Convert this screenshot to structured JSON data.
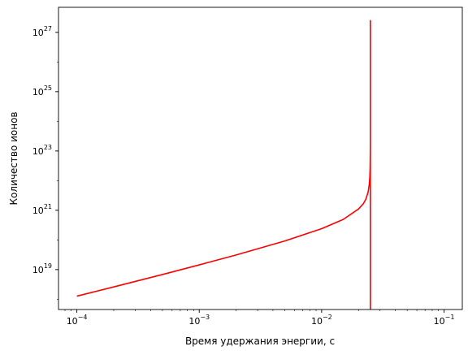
{
  "chart_data": {
    "type": "line",
    "xscale": "log",
    "yscale": "log",
    "xlim": [
      7.08e-05,
      0.141
    ],
    "ylim": [
      4.5e+17,
      7e+27
    ],
    "xlabel": "Время удержания энергии, с",
    "ylabel": "Количество ионов",
    "grid": false,
    "x_ticks": [
      {
        "value": 0.0001,
        "base": "10",
        "exp": "−4"
      },
      {
        "value": 0.001,
        "base": "10",
        "exp": "−3"
      },
      {
        "value": 0.01,
        "base": "10",
        "exp": "−2"
      },
      {
        "value": 0.1,
        "base": "10",
        "exp": "−1"
      }
    ],
    "y_ticks": [
      {
        "value": 1e+19,
        "base": "10",
        "exp": "19"
      },
      {
        "value": 1e+21,
        "base": "10",
        "exp": "21"
      },
      {
        "value": 1e+23,
        "base": "10",
        "exp": "23"
      },
      {
        "value": 1e+25,
        "base": "10",
        "exp": "25"
      },
      {
        "value": 1e+27,
        "base": "10",
        "exp": "27"
      }
    ],
    "series": [
      {
        "color": "#ff0000",
        "x": [
          0.0001,
          0.0002,
          0.0005,
          0.001,
          0.002,
          0.005,
          0.01,
          0.015,
          0.02,
          0.022,
          0.023,
          0.024,
          0.0245,
          0.02475,
          0.0249,
          0.02495,
          0.025,
          0.025,
          0.025
        ],
        "y": [
          1.27e+18,
          2.6e+18,
          6.8e+18,
          1.44e+19,
          3.1e+19,
          9.2e+19,
          2.4e+20,
          4.9e+20,
          1.1e+21,
          1.7e+21,
          2.4e+21,
          4.2e+21,
          7.5e+21,
          1.3e+22,
          3e+22,
          6e+22,
          1.5e+23,
          2.5e+27,
          4.5e+17
        ]
      }
    ]
  }
}
